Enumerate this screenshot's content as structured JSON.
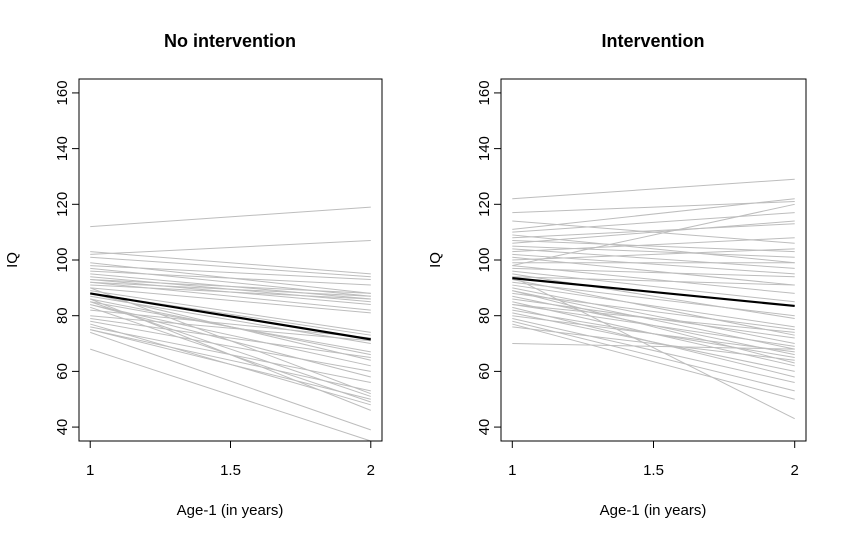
{
  "chart_data": [
    {
      "type": "line",
      "title": "No intervention",
      "xlabel": "Age-1 (in years)",
      "ylabel": "IQ",
      "xlim": [
        0.96,
        2.04
      ],
      "ylim": [
        35,
        165
      ],
      "xticks": [
        1,
        1.5,
        2
      ],
      "xtick_labels": [
        "1",
        "1.5",
        "2"
      ],
      "yticks": [
        40,
        60,
        80,
        100,
        120,
        140,
        160
      ],
      "ytick_labels": [
        "40",
        "60",
        "80",
        "100",
        "120",
        "140",
        "160"
      ],
      "individual_color": "#bdbdbd",
      "mean_color": "#000000",
      "x": [
        1,
        2
      ],
      "individuals": [
        [
          112,
          119
        ],
        [
          102,
          107
        ],
        [
          103,
          95
        ],
        [
          101,
          94
        ],
        [
          99,
          88
        ],
        [
          98,
          93
        ],
        [
          97,
          87
        ],
        [
          96,
          91
        ],
        [
          95,
          86
        ],
        [
          94,
          85
        ],
        [
          93,
          88
        ],
        [
          93,
          84
        ],
        [
          92,
          87
        ],
        [
          92,
          82
        ],
        [
          91,
          86
        ],
        [
          90,
          81
        ],
        [
          89,
          74
        ],
        [
          88,
          73
        ],
        [
          88,
          64
        ],
        [
          87,
          70
        ],
        [
          86,
          66
        ],
        [
          85,
          67
        ],
        [
          85,
          51
        ],
        [
          84,
          58
        ],
        [
          84,
          62
        ],
        [
          83,
          49
        ],
        [
          82,
          72
        ],
        [
          80,
          71
        ],
        [
          79,
          65
        ],
        [
          78,
          60
        ],
        [
          77,
          48
        ],
        [
          76,
          56
        ],
        [
          75,
          53
        ],
        [
          75,
          50
        ],
        [
          74,
          39
        ],
        [
          68,
          35
        ],
        [
          90,
          52
        ],
        [
          86,
          46
        ]
      ],
      "mean": [
        88,
        71.5
      ]
    },
    {
      "type": "line",
      "title": "Intervention",
      "xlabel": "Age-1 (in years)",
      "ylabel": "IQ",
      "xlim": [
        0.96,
        2.04
      ],
      "ylim": [
        35,
        165
      ],
      "xticks": [
        1,
        1.5,
        2
      ],
      "xtick_labels": [
        "1",
        "1.5",
        "2"
      ],
      "yticks": [
        40,
        60,
        80,
        100,
        120,
        140,
        160
      ],
      "ytick_labels": [
        "40",
        "60",
        "80",
        "100",
        "120",
        "140",
        "160"
      ],
      "individual_color": "#bdbdbd",
      "mean_color": "#000000",
      "x": [
        1,
        2
      ],
      "individuals": [
        [
          122,
          129
        ],
        [
          117,
          121
        ],
        [
          114,
          106
        ],
        [
          111,
          122
        ],
        [
          110,
          117
        ],
        [
          109,
          99
        ],
        [
          108,
          113
        ],
        [
          107,
          103
        ],
        [
          106,
          114
        ],
        [
          105,
          101
        ],
        [
          104,
          97
        ],
        [
          103,
          108
        ],
        [
          102,
          95
        ],
        [
          101,
          91
        ],
        [
          100,
          104
        ],
        [
          99,
          99
        ],
        [
          98,
          88
        ],
        [
          97,
          94
        ],
        [
          96,
          85
        ],
        [
          95,
          79
        ],
        [
          94,
          91
        ],
        [
          93,
          73
        ],
        [
          92,
          80
        ],
        [
          91,
          76
        ],
        [
          90,
          70
        ],
        [
          89,
          68
        ],
        [
          88,
          75
        ],
        [
          87,
          66
        ],
        [
          86,
          72
        ],
        [
          85,
          62
        ],
        [
          84,
          69
        ],
        [
          83,
          58
        ],
        [
          82,
          65
        ],
        [
          81,
          60
        ],
        [
          80,
          67
        ],
        [
          79,
          56
        ],
        [
          78,
          53
        ],
        [
          77,
          50
        ],
        [
          76,
          64
        ],
        [
          70,
          68
        ],
        [
          94,
          43
        ],
        [
          98,
          120
        ],
        [
          89,
          63
        ],
        [
          84,
          74
        ]
      ],
      "mean": [
        93.5,
        83.5
      ]
    }
  ]
}
